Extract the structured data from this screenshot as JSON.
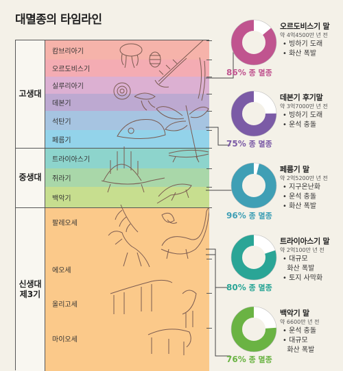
{
  "title": "대멸종의 타임라인",
  "eras": [
    {
      "name": "고생대"
    },
    {
      "name": "중생대"
    },
    {
      "name": "신생대\n제3기"
    }
  ],
  "periods": [
    {
      "name": "캄브리아기",
      "color": "#f6b3aa"
    },
    {
      "name": "오르도비스기",
      "color": "#f4acb3"
    },
    {
      "name": "실루리아기",
      "color": "#dcb0d2"
    },
    {
      "name": "데본기",
      "color": "#bda9d1"
    },
    {
      "name": "석탄기",
      "color": "#a6c4e1"
    },
    {
      "name": "페름기",
      "color": "#93d3ea"
    },
    {
      "name": "트라이아스기",
      "color": "#8dd4cc"
    },
    {
      "name": "쥐라기",
      "color": "#a9d7a9"
    },
    {
      "name": "백악기",
      "color": "#c7de8f"
    },
    {
      "name": "팔레오세",
      "color": "#fbc98a"
    },
    {
      "name": "에오세",
      "color": "#fbc98a"
    },
    {
      "name": "올리고세",
      "color": "#fbc98a"
    },
    {
      "name": "마이오세",
      "color": "#fbc98a"
    }
  ],
  "events": [
    {
      "title": "오르도비스기 말",
      "date": "약 4억4500만 년 전",
      "causes": [
        "• 빙하기 도래",
        "• 화산 폭발"
      ],
      "percent": 86,
      "percent_text": "86%",
      "label": "종 멸종",
      "color": "#c0548f"
    },
    {
      "title": "데본기 후기말",
      "date": "약 3억7000만 년 전",
      "causes": [
        "• 빙하기 도래",
        "• 운석 충돌"
      ],
      "percent": 75,
      "percent_text": "75%",
      "label": "종 멸종",
      "color": "#7b5ba6"
    },
    {
      "title": "페름기 말",
      "date": "약 2억5200만 년 전",
      "causes": [
        "• 지구온난화",
        "• 운석 충돌",
        "• 화산 폭발"
      ],
      "percent": 96,
      "percent_text": "96%",
      "label": "종 멸종",
      "color": "#3f9fb5"
    },
    {
      "title": "트라이아스기 말",
      "date": "약 2억100만 년 전",
      "causes": [
        "• 대규모",
        "  화산 폭발",
        "• 토지 사막화"
      ],
      "percent": 80,
      "percent_text": "80%",
      "label": "종 멸종",
      "color": "#2aa596"
    },
    {
      "title": "백악기 말",
      "date": "약 6600만 년 전",
      "causes": [
        "• 운석 충돌",
        "• 대규모",
        "  화산 폭발"
      ],
      "percent": 76,
      "percent_text": "76%",
      "label": "종 멸종",
      "color": "#6ab343"
    }
  ]
}
